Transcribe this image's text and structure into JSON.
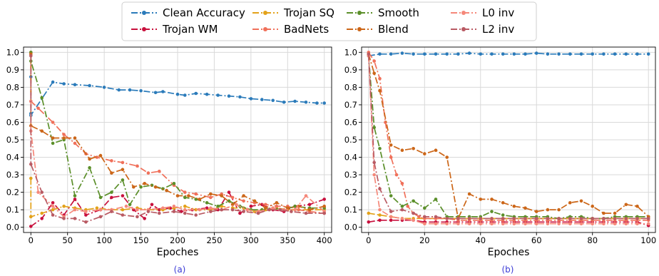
{
  "chart_data": [
    {
      "type": "line",
      "caption": "(a)",
      "xlabel": "Epoches",
      "ylabel": "",
      "xlim": [
        -10,
        410
      ],
      "ylim": [
        -0.03,
        1.03
      ],
      "x_ticks": [
        0,
        50,
        100,
        150,
        200,
        250,
        300,
        350,
        400
      ],
      "y_ticks": [
        0.0,
        0.1,
        0.2,
        0.3,
        0.4,
        0.5,
        0.6,
        0.7,
        0.8,
        0.9,
        1.0
      ],
      "grid": true,
      "series": [
        {
          "name": "Clean Accuracy",
          "color": "#2b7bba",
          "dash": "dashdot",
          "x": [
            0,
            0,
            0,
            0,
            30,
            45,
            60,
            80,
            100,
            120,
            135,
            150,
            170,
            180,
            200,
            210,
            225,
            240,
            255,
            270,
            285,
            300,
            315,
            330,
            345,
            360,
            375,
            390,
            400
          ],
          "y": [
            0.86,
            0.72,
            0.65,
            0.64,
            0.83,
            0.82,
            0.815,
            0.81,
            0.8,
            0.785,
            0.785,
            0.78,
            0.77,
            0.775,
            0.76,
            0.755,
            0.765,
            0.76,
            0.755,
            0.75,
            0.745,
            0.735,
            0.73,
            0.725,
            0.715,
            0.72,
            0.715,
            0.71,
            0.71
          ]
        },
        {
          "name": "Trojan WM",
          "color": "#c8103d",
          "dash": "dashdot",
          "x": [
            0,
            15,
            30,
            45,
            60,
            75,
            95,
            110,
            125,
            140,
            155,
            165,
            175,
            190,
            205,
            220,
            240,
            255,
            270,
            285,
            300,
            315,
            330,
            345,
            360,
            380,
            400
          ],
          "y": [
            0.005,
            0.05,
            0.14,
            0.07,
            0.16,
            0.07,
            0.1,
            0.17,
            0.18,
            0.1,
            0.05,
            0.13,
            0.1,
            0.11,
            0.09,
            0.1,
            0.11,
            0.1,
            0.2,
            0.08,
            0.12,
            0.13,
            0.1,
            0.09,
            0.12,
            0.13,
            0.16
          ]
        },
        {
          "name": "Trojan SQ",
          "color": "#e3a21a",
          "dash": "dashdot",
          "x": [
            0,
            0,
            15,
            30,
            45,
            60,
            75,
            90,
            110,
            125,
            145,
            160,
            180,
            195,
            210,
            225,
            245,
            260,
            275,
            290,
            305,
            320,
            335,
            350,
            365,
            380,
            400
          ],
          "y": [
            0.28,
            0.06,
            0.08,
            0.1,
            0.12,
            0.11,
            0.1,
            0.11,
            0.1,
            0.1,
            0.11,
            0.1,
            0.1,
            0.11,
            0.12,
            0.1,
            0.1,
            0.12,
            0.11,
            0.11,
            0.09,
            0.1,
            0.11,
            0.1,
            0.1,
            0.1,
            0.1
          ]
        },
        {
          "name": "BadNets",
          "color": "#f0705a",
          "dash": "dashdot",
          "x": [
            0,
            0,
            10,
            30,
            45,
            60,
            75,
            90,
            110,
            125,
            145,
            160,
            175,
            195,
            210,
            225,
            245,
            260,
            275,
            290,
            305,
            320,
            335,
            350,
            365,
            380,
            400
          ],
          "y": [
            1.0,
            0.72,
            0.68,
            0.6,
            0.53,
            0.48,
            0.42,
            0.4,
            0.38,
            0.37,
            0.35,
            0.31,
            0.32,
            0.24,
            0.2,
            0.19,
            0.17,
            0.19,
            0.17,
            0.15,
            0.14,
            0.13,
            0.12,
            0.12,
            0.1,
            0.09,
            0.08
          ]
        },
        {
          "name": "Smooth",
          "color": "#5b8f2a",
          "dash": "dashdot",
          "x": [
            0,
            0,
            15,
            30,
            45,
            60,
            80,
            95,
            110,
            125,
            135,
            150,
            165,
            180,
            195,
            210,
            225,
            240,
            255,
            270,
            285,
            300,
            315,
            330,
            345,
            360,
            380,
            400
          ],
          "y": [
            1.0,
            0.95,
            0.74,
            0.48,
            0.5,
            0.18,
            0.34,
            0.17,
            0.2,
            0.27,
            0.13,
            0.23,
            0.24,
            0.22,
            0.25,
            0.17,
            0.16,
            0.14,
            0.12,
            0.15,
            0.12,
            0.1,
            0.1,
            0.11,
            0.1,
            0.12,
            0.11,
            0.11
          ]
        },
        {
          "name": "Blend",
          "color": "#cc6618",
          "dash": "dashdot",
          "x": [
            0,
            0,
            15,
            30,
            45,
            60,
            80,
            95,
            110,
            125,
            140,
            155,
            170,
            185,
            200,
            215,
            230,
            245,
            260,
            275,
            290,
            305,
            320,
            335,
            350,
            365,
            380,
            400
          ],
          "y": [
            0.99,
            0.58,
            0.55,
            0.51,
            0.51,
            0.51,
            0.39,
            0.41,
            0.31,
            0.33,
            0.23,
            0.25,
            0.23,
            0.21,
            0.18,
            0.18,
            0.16,
            0.19,
            0.18,
            0.13,
            0.18,
            0.15,
            0.11,
            0.14,
            0.11,
            0.12,
            0.1,
            0.12
          ]
        },
        {
          "name": "L0 inv",
          "color": "#f5887a",
          "dash": "dashdot",
          "x": [
            0,
            0,
            10,
            30,
            45,
            60,
            75,
            95,
            110,
            130,
            145,
            160,
            180,
            195,
            210,
            230,
            245,
            260,
            280,
            295,
            310,
            330,
            345,
            360,
            375,
            400
          ],
          "y": [
            0.72,
            0.55,
            0.2,
            0.12,
            0.06,
            0.1,
            0.09,
            0.1,
            0.1,
            0.12,
            0.1,
            0.1,
            0.11,
            0.12,
            0.1,
            0.1,
            0.11,
            0.1,
            0.13,
            0.1,
            0.09,
            0.11,
            0.1,
            0.1,
            0.18,
            0.09
          ]
        },
        {
          "name": "L2 inv",
          "color": "#b95a63",
          "dash": "dashdot",
          "x": [
            0,
            0,
            15,
            30,
            45,
            60,
            75,
            95,
            110,
            125,
            145,
            160,
            175,
            195,
            210,
            225,
            245,
            260,
            275,
            290,
            310,
            325,
            340,
            355,
            375,
            400
          ],
          "y": [
            0.98,
            0.36,
            0.2,
            0.07,
            0.05,
            0.05,
            0.03,
            0.06,
            0.09,
            0.07,
            0.06,
            0.09,
            0.08,
            0.09,
            0.08,
            0.07,
            0.09,
            0.1,
            0.1,
            0.09,
            0.08,
            0.1,
            0.1,
            0.09,
            0.08,
            0.08
          ]
        }
      ]
    },
    {
      "type": "line",
      "caption": "(b)",
      "xlabel": "Epoches",
      "ylabel": "",
      "xlim": [
        -2.5,
        102.5
      ],
      "ylim": [
        -0.03,
        1.03
      ],
      "x_ticks": [
        0,
        20,
        40,
        60,
        80,
        100
      ],
      "y_ticks": [
        0.0,
        0.1,
        0.2,
        0.3,
        0.4,
        0.5,
        0.6,
        0.7,
        0.8,
        0.9,
        1.0
      ],
      "grid": true,
      "series": [
        {
          "name": "Clean Accuracy",
          "color": "#2b7bba",
          "dash": "dashdot",
          "x": [
            0,
            4,
            8,
            12,
            16,
            20,
            24,
            28,
            32,
            36,
            40,
            44,
            48,
            52,
            56,
            60,
            64,
            68,
            72,
            76,
            80,
            84,
            88,
            92,
            96,
            100
          ],
          "y": [
            0.98,
            0.99,
            0.99,
            0.995,
            0.99,
            0.99,
            0.99,
            0.99,
            0.99,
            0.995,
            0.99,
            0.99,
            0.99,
            0.99,
            0.99,
            0.995,
            0.99,
            0.99,
            0.99,
            0.99,
            0.99,
            0.99,
            0.99,
            0.99,
            0.99,
            0.99
          ]
        },
        {
          "name": "Trojan WM",
          "color": "#c8103d",
          "dash": "dashdot",
          "x": [
            0,
            4,
            8,
            12,
            16,
            20,
            24,
            28,
            32,
            36,
            40,
            44,
            48,
            52,
            56,
            60,
            64,
            68,
            72,
            76,
            80,
            84,
            88,
            92,
            96,
            100
          ],
          "y": [
            0.03,
            0.04,
            0.04,
            0.04,
            0.04,
            0.03,
            0.03,
            0.03,
            0.03,
            0.03,
            0.03,
            0.03,
            0.03,
            0.03,
            0.03,
            0.03,
            0.03,
            0.03,
            0.03,
            0.03,
            0.03,
            0.03,
            0.03,
            0.03,
            0.03,
            0.01
          ]
        },
        {
          "name": "Trojan SQ",
          "color": "#e3a21a",
          "dash": "dashdot",
          "x": [
            0,
            4,
            8,
            12,
            16,
            20,
            24,
            28,
            32,
            36,
            40,
            44,
            48,
            52,
            56,
            60,
            64,
            68,
            72,
            76,
            80,
            84,
            88,
            92,
            96,
            100
          ],
          "y": [
            0.08,
            0.07,
            0.06,
            0.05,
            0.05,
            0.05,
            0.05,
            0.05,
            0.05,
            0.05,
            0.05,
            0.05,
            0.05,
            0.05,
            0.05,
            0.05,
            0.05,
            0.05,
            0.05,
            0.05,
            0.05,
            0.05,
            0.05,
            0.05,
            0.05,
            0.05
          ]
        },
        {
          "name": "BadNets",
          "color": "#f0705a",
          "dash": "dashdot",
          "x": [
            0,
            2,
            4,
            6,
            8,
            10,
            12,
            14,
            16,
            18,
            20,
            24,
            28,
            32,
            36,
            40,
            44,
            48,
            52,
            56,
            60,
            64,
            68,
            72,
            76,
            80,
            84,
            88,
            92,
            96,
            100
          ],
          "y": [
            1.0,
            0.95,
            0.85,
            0.6,
            0.4,
            0.3,
            0.25,
            0.12,
            0.08,
            0.06,
            0.05,
            0.05,
            0.05,
            0.04,
            0.04,
            0.04,
            0.04,
            0.04,
            0.04,
            0.04,
            0.04,
            0.04,
            0.04,
            0.04,
            0.04,
            0.04,
            0.04,
            0.04,
            0.04,
            0.04,
            0.04
          ]
        },
        {
          "name": "Smooth",
          "color": "#5b8f2a",
          "dash": "dashdot",
          "x": [
            0,
            2,
            4,
            8,
            12,
            16,
            20,
            24,
            28,
            32,
            36,
            40,
            44,
            48,
            52,
            56,
            60,
            64,
            68,
            72,
            76,
            80,
            84,
            88,
            92,
            96,
            100
          ],
          "y": [
            0.98,
            0.57,
            0.45,
            0.18,
            0.12,
            0.15,
            0.11,
            0.16,
            0.06,
            0.06,
            0.06,
            0.06,
            0.09,
            0.07,
            0.06,
            0.06,
            0.06,
            0.06,
            0.05,
            0.06,
            0.06,
            0.05,
            0.05,
            0.06,
            0.06,
            0.06,
            0.06
          ]
        },
        {
          "name": "Blend",
          "color": "#cc6618",
          "dash": "dashdot",
          "x": [
            0,
            2,
            4,
            8,
            12,
            16,
            20,
            24,
            28,
            32,
            36,
            40,
            44,
            48,
            52,
            56,
            60,
            64,
            68,
            72,
            76,
            80,
            84,
            88,
            92,
            96,
            100
          ],
          "y": [
            0.99,
            0.88,
            0.78,
            0.47,
            0.44,
            0.45,
            0.42,
            0.44,
            0.4,
            0.05,
            0.19,
            0.16,
            0.16,
            0.14,
            0.12,
            0.11,
            0.09,
            0.1,
            0.1,
            0.14,
            0.15,
            0.12,
            0.08,
            0.08,
            0.13,
            0.12,
            0.06
          ]
        },
        {
          "name": "L0 inv",
          "color": "#f5887a",
          "dash": "dashdot",
          "x": [
            0,
            2,
            4,
            8,
            12,
            16,
            20,
            24,
            28,
            32,
            36,
            40,
            44,
            48,
            52,
            56,
            60,
            64,
            68,
            72,
            76,
            80,
            84,
            88,
            92,
            96,
            100
          ],
          "y": [
            0.98,
            0.3,
            0.1,
            0.06,
            0.05,
            0.04,
            0.02,
            0.02,
            0.02,
            0.02,
            0.02,
            0.02,
            0.02,
            0.02,
            0.02,
            0.02,
            0.02,
            0.02,
            0.02,
            0.02,
            0.02,
            0.02,
            0.02,
            0.02,
            0.02,
            0.02,
            0.02
          ]
        },
        {
          "name": "L2 inv",
          "color": "#b95a63",
          "dash": "dashdot",
          "x": [
            0,
            2,
            4,
            8,
            12,
            16,
            20,
            24,
            28,
            32,
            36,
            40,
            44,
            48,
            52,
            56,
            60,
            64,
            68,
            72,
            76,
            80,
            84,
            88,
            92,
            96,
            100
          ],
          "y": [
            0.99,
            0.37,
            0.22,
            0.09,
            0.1,
            0.08,
            0.06,
            0.06,
            0.05,
            0.05,
            0.05,
            0.05,
            0.05,
            0.05,
            0.05,
            0.05,
            0.05,
            0.05,
            0.05,
            0.05,
            0.05,
            0.05,
            0.05,
            0.05,
            0.05,
            0.05,
            0.05
          ]
        }
      ]
    }
  ],
  "legend": {
    "location": "top-center",
    "columns": 4,
    "entries": [
      {
        "name": "Clean Accuracy",
        "color": "#2b7bba"
      },
      {
        "name": "Trojan WM",
        "color": "#c8103d"
      },
      {
        "name": "Trojan SQ",
        "color": "#e3a21a"
      },
      {
        "name": "BadNets",
        "color": "#f0705a"
      },
      {
        "name": "Smooth",
        "color": "#5b8f2a"
      },
      {
        "name": "Blend",
        "color": "#cc6618"
      },
      {
        "name": "L0 inv",
        "color": "#f5887a"
      },
      {
        "name": "L2 inv",
        "color": "#b95a63"
      }
    ]
  }
}
